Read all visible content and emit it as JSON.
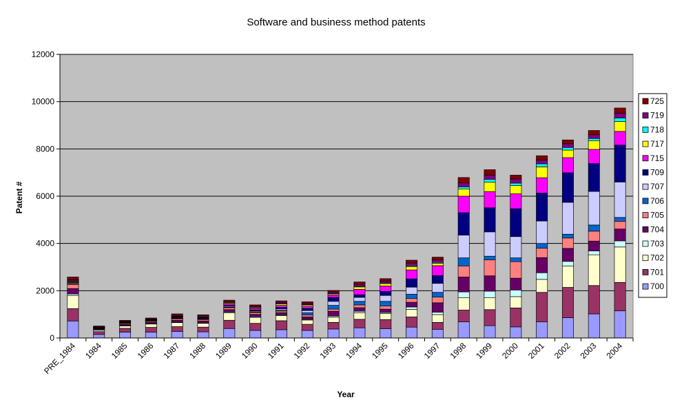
{
  "chart_data": {
    "type": "bar",
    "stacked": true,
    "title": "Software and business method patents",
    "xlabel": "Year",
    "ylabel": "Patent #",
    "ylim": [
      0,
      12000
    ],
    "yticks": [
      "0",
      "2000",
      "4000",
      "6000",
      "8000",
      "10000",
      "12000"
    ],
    "grid": true,
    "legend_position": "right",
    "plot_background": "#c0c0c0",
    "categories": [
      "PRE_1984",
      "1984",
      "1985",
      "1986",
      "1987",
      "1988",
      "1989",
      "1990",
      "1991",
      "1992",
      "1993",
      "1994",
      "1995",
      "1996",
      "1997",
      "1998",
      "1999",
      "2000",
      "2001",
      "2002",
      "2003",
      "2004"
    ],
    "series": [
      {
        "name": "700",
        "color": "#9999ff",
        "values": [
          720,
          150,
          250,
          250,
          280,
          260,
          400,
          320,
          350,
          320,
          380,
          430,
          390,
          460,
          360,
          680,
          520,
          470,
          680,
          860,
          1020,
          1150
        ]
      },
      {
        "name": "701",
        "color": "#993366",
        "values": [
          520,
          120,
          160,
          200,
          200,
          200,
          350,
          300,
          380,
          260,
          280,
          360,
          390,
          430,
          300,
          500,
          680,
          800,
          1250,
          1280,
          1200,
          1200
        ]
      },
      {
        "name": "702",
        "color": "#ffffcc",
        "values": [
          560,
          60,
          100,
          140,
          170,
          160,
          320,
          250,
          220,
          180,
          220,
          280,
          250,
          320,
          330,
          520,
          500,
          480,
          550,
          900,
          1300,
          1500
        ]
      },
      {
        "name": "703",
        "color": "#ccffff",
        "values": [
          60,
          10,
          20,
          20,
          20,
          20,
          30,
          30,
          30,
          30,
          50,
          60,
          50,
          100,
          100,
          250,
          280,
          280,
          280,
          200,
          160,
          260
        ]
      },
      {
        "name": "704",
        "color": "#660066",
        "values": [
          230,
          50,
          60,
          60,
          80,
          80,
          100,
          100,
          90,
          100,
          200,
          150,
          140,
          200,
          400,
          630,
          650,
          500,
          640,
          550,
          420,
          500
        ]
      },
      {
        "name": "705",
        "color": "#ff8080",
        "values": [
          180,
          20,
          40,
          40,
          60,
          60,
          80,
          80,
          70,
          80,
          90,
          120,
          130,
          160,
          240,
          470,
          680,
          700,
          400,
          440,
          420,
          330
        ]
      },
      {
        "name": "706",
        "color": "#0066cc",
        "values": [
          20,
          10,
          10,
          10,
          10,
          10,
          20,
          20,
          30,
          100,
          160,
          150,
          200,
          180,
          200,
          340,
          150,
          160,
          200,
          160,
          260,
          160
        ]
      },
      {
        "name": "707",
        "color": "#ccccff",
        "values": [
          40,
          10,
          10,
          10,
          20,
          20,
          40,
          40,
          60,
          90,
          170,
          170,
          250,
          300,
          380,
          960,
          1030,
          900,
          950,
          1350,
          1420,
          1500
        ]
      },
      {
        "name": "709",
        "color": "#000080",
        "values": [
          20,
          10,
          10,
          10,
          20,
          20,
          40,
          40,
          70,
          90,
          170,
          110,
          170,
          350,
          330,
          950,
          1020,
          1180,
          1180,
          1250,
          1180,
          1560
        ]
      },
      {
        "name": "715",
        "color": "#ff00ff",
        "values": [
          20,
          10,
          10,
          20,
          30,
          30,
          60,
          60,
          80,
          80,
          100,
          230,
          230,
          380,
          420,
          700,
          680,
          630,
          650,
          640,
          600,
          580
        ]
      },
      {
        "name": "717",
        "color": "#ffff00",
        "values": [
          30,
          10,
          10,
          10,
          20,
          20,
          40,
          40,
          60,
          60,
          50,
          100,
          100,
          140,
          100,
          300,
          400,
          350,
          460,
          320,
          360,
          420
        ]
      },
      {
        "name": "718",
        "color": "#00ffff",
        "values": [
          10,
          5,
          5,
          5,
          10,
          10,
          10,
          10,
          10,
          20,
          20,
          30,
          30,
          40,
          40,
          90,
          120,
          100,
          130,
          110,
          100,
          150
        ]
      },
      {
        "name": "719",
        "color": "#800080",
        "values": [
          50,
          10,
          20,
          30,
          40,
          50,
          50,
          50,
          60,
          60,
          60,
          80,
          80,
          110,
          100,
          170,
          180,
          180,
          160,
          160,
          160,
          200
        ]
      },
      {
        "name": "725",
        "color": "#800000",
        "values": [
          120,
          30,
          40,
          40,
          60,
          40,
          60,
          60,
          60,
          60,
          60,
          100,
          100,
          120,
          120,
          230,
          230,
          160,
          180,
          160,
          180,
          220
        ]
      }
    ],
    "series_other_color": "#000000"
  }
}
